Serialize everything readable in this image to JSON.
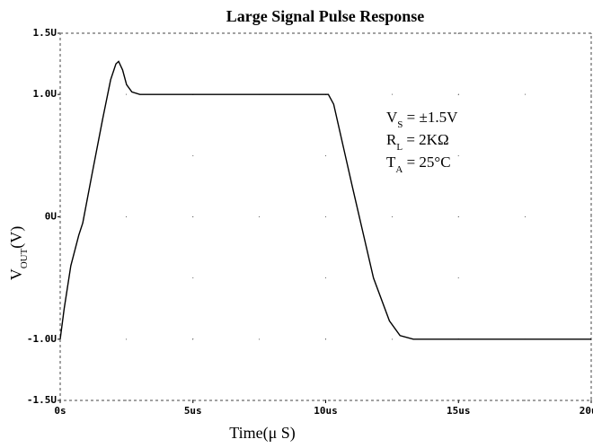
{
  "chart_data": {
    "type": "line",
    "title": "Large Signal Pulse Response",
    "x_label": "Time(μ S)",
    "y_label": {
      "symbol": "V",
      "subscript": "OUT",
      "text": "(V)"
    },
    "annotations": [
      {
        "symbol": "V",
        "subscript": "S",
        "text": " = ±1.5V"
      },
      {
        "symbol": "R",
        "subscript": "L",
        "text": " = 2KΩ"
      },
      {
        "symbol": "T",
        "subscript": "A",
        "text": " = 25°C"
      }
    ],
    "x": [
      0,
      0.15,
      0.4,
      0.7,
      0.85,
      1.2,
      1.6,
      1.9,
      2.1,
      2.2,
      2.35,
      2.5,
      2.7,
      3.0,
      10.1,
      10.3,
      11.0,
      11.8,
      12.4,
      12.8,
      13.3,
      20
    ],
    "series": [
      {
        "color": "#000000",
        "values": [
          -1.0,
          -0.75,
          -0.4,
          -0.15,
          -0.05,
          0.35,
          0.8,
          1.12,
          1.25,
          1.27,
          1.2,
          1.08,
          1.02,
          1.0,
          1.0,
          0.92,
          0.25,
          -0.5,
          -0.85,
          -0.97,
          -1.0,
          -1.0
        ]
      }
    ],
    "xlim": [
      0,
      20
    ],
    "xticks": [
      {
        "value": 0,
        "label": "0s"
      },
      {
        "value": 5,
        "label": "5us"
      },
      {
        "value": 10,
        "label": "10us"
      },
      {
        "value": 15,
        "label": "15us"
      },
      {
        "value": 20,
        "label": "20us"
      }
    ],
    "ylim": [
      -1.5,
      1.5
    ],
    "yticks": [
      {
        "value": -1.5,
        "label": "-1.5U"
      },
      {
        "value": -1.0,
        "label": "-1.0U"
      },
      {
        "value": 0,
        "label": "0U"
      },
      {
        "value": 1.0,
        "label": "1.0U"
      },
      {
        "value": 1.5,
        "label": "1.5U"
      }
    ],
    "grid": true
  }
}
